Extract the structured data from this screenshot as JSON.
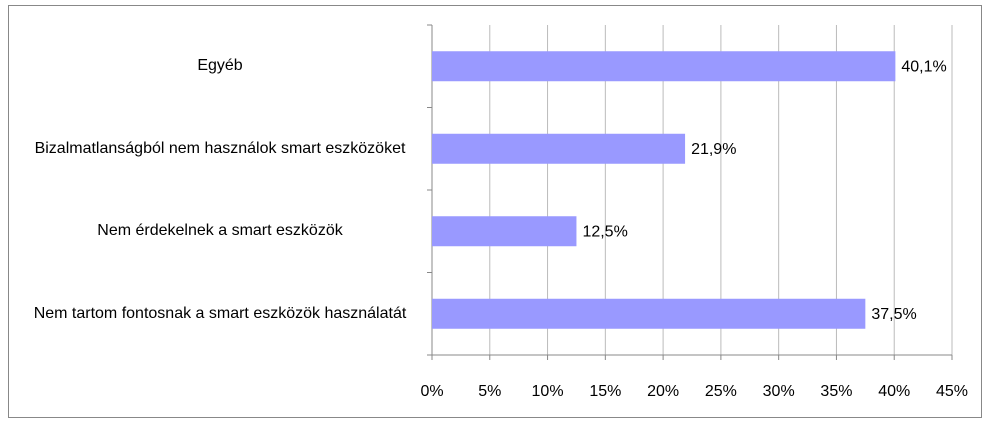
{
  "chart_data": {
    "type": "bar",
    "orientation": "horizontal",
    "categories": [
      "Egyéb",
      "Bizalmatlanságból nem használok smart eszközöket",
      "Nem érdekelnek a smart eszközök",
      "Nem tartom fontosnak a smart eszközök használatát"
    ],
    "values": [
      40.1,
      21.9,
      12.5,
      37.5
    ],
    "value_labels": [
      "40,1%",
      "21,9%",
      "12,5%",
      "37,5%"
    ],
    "color": "#9999ff",
    "xlim": [
      0,
      45
    ],
    "xticks": [
      {
        "value": 0,
        "label": "0%"
      },
      {
        "value": 5,
        "label": "5%"
      },
      {
        "value": 10,
        "label": "10%"
      },
      {
        "value": 15,
        "label": "15%"
      },
      {
        "value": 20,
        "label": "20%"
      },
      {
        "value": 25,
        "label": "25%"
      },
      {
        "value": 30,
        "label": "30%"
      },
      {
        "value": 35,
        "label": "35%"
      },
      {
        "value": 40,
        "label": "40%"
      },
      {
        "value": 45,
        "label": "45%"
      }
    ],
    "grid": true
  }
}
